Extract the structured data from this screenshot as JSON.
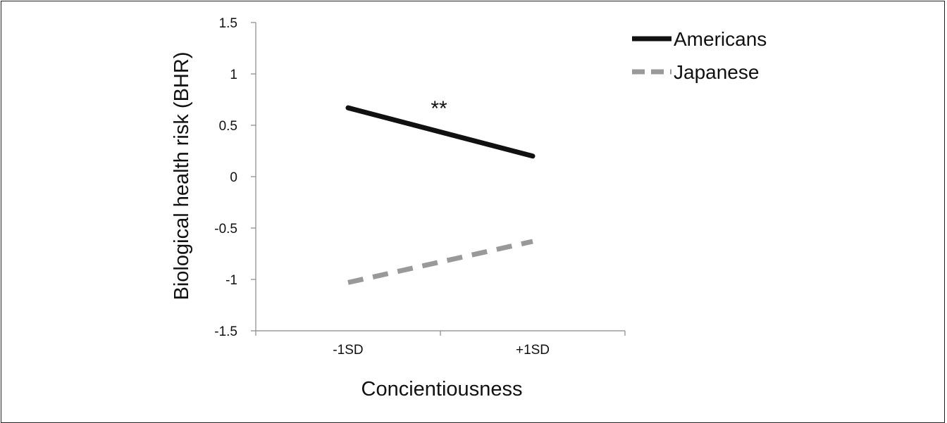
{
  "chart_data": {
    "type": "line",
    "title": "",
    "xlabel": "Concientiousness",
    "ylabel": "Biological health risk (BHR)",
    "categories": [
      "-1SD",
      "+1SD"
    ],
    "ylim": [
      -1.5,
      1.5
    ],
    "yticks": [
      1.5,
      1,
      0.5,
      0,
      -0.5,
      -1,
      -1.5
    ],
    "ytick_labels": [
      "1.5",
      "1",
      "0.5",
      "0",
      "-0.5",
      "-1",
      "-1.5"
    ],
    "grid": false,
    "legend_position": "top-right",
    "series": [
      {
        "name": "Americans",
        "values": [
          0.67,
          0.2
        ],
        "color": "#111111",
        "style": "solid"
      },
      {
        "name": "Japanese",
        "values": [
          -1.03,
          -0.63
        ],
        "color": "#999999",
        "style": "dashed"
      }
    ],
    "annotations": [
      {
        "text": "**",
        "x_between": [
          "-1SD",
          "+1SD"
        ],
        "y": 0.72
      }
    ]
  }
}
